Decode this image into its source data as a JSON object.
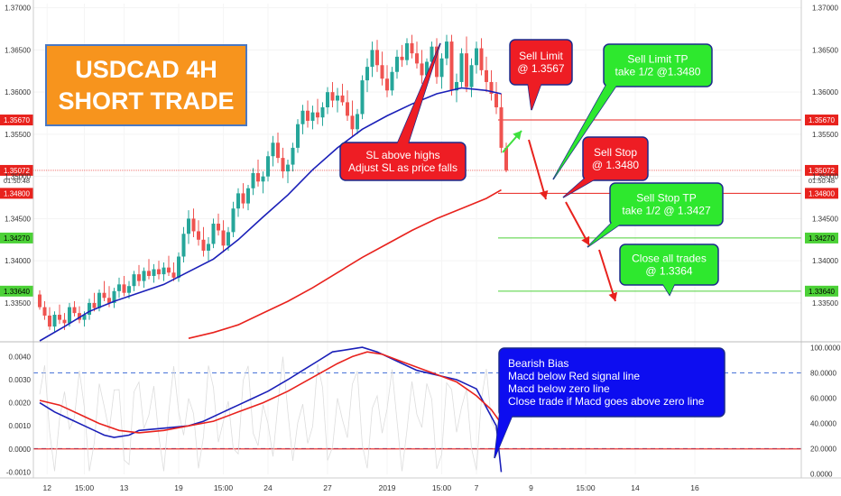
{
  "title_box": {
    "line1": "USDCAD 4H",
    "line2": "SHORT TRADE",
    "bg": "#f7941d",
    "border": "#4a78c2"
  },
  "colors": {
    "up": "#26a69a",
    "down": "#ef5350",
    "ma_fast": "#1a1fb8",
    "ma_slow": "#e8221d",
    "macd": "#1a1fb8",
    "signal": "#e8221d",
    "rsi": "#dddddd",
    "red_line": "#e8221d",
    "green_line": "#4cd137",
    "arrow_red": "#e8221d",
    "arrow_green": "#3ee03e"
  },
  "callouts": {
    "sl": {
      "lines": [
        "SL above highs",
        "Adjust SL as price falls"
      ],
      "bg": "#ee1d24"
    },
    "sell_limit": {
      "lines": [
        "Sell Limit",
        "@ 1.3567"
      ],
      "bg": "#ee1d24"
    },
    "sell_limit_tp": {
      "lines": [
        "Sell Limit TP",
        "take 1/2 @1.3480"
      ],
      "bg": "#2ee82e"
    },
    "sell_stop": {
      "lines": [
        "Sell Stop",
        "@ 1.3480"
      ],
      "bg": "#ee1d24"
    },
    "sell_stop_tp": {
      "lines": [
        "Sell Stop TP",
        "take 1/2 @ 1.3427"
      ],
      "bg": "#2ee82e"
    },
    "close_all": {
      "lines": [
        "Close all trades",
        "@ 1.3364"
      ],
      "bg": "#2ee82e"
    },
    "bias": {
      "lines": [
        "Bearish Bias",
        "Macd below Red signal line",
        "Macd below zero line",
        "Close trade if Macd goes above zero line"
      ],
      "bg": "#0d0df0"
    }
  },
  "chart_data": [
    {
      "type": "candlestick",
      "title": "",
      "ylim": [
        1.3305,
        1.3705
      ],
      "price_axis_labels": [
        "1.37000",
        "1.36500",
        "1.36000",
        "1.35500",
        "1.35000",
        "1.34500",
        "1.34000",
        "1.33500"
      ],
      "levels": [
        {
          "price": 1.3567,
          "label": "1.35670",
          "kind": "red"
        },
        {
          "price": 1.35072,
          "label": "1.35072",
          "kind": "red",
          "sublabel": "01:50:48"
        },
        {
          "price": 1.348,
          "label": "1.34800",
          "kind": "red"
        },
        {
          "price": 1.3427,
          "label": "1.34270",
          "kind": "green"
        },
        {
          "price": 1.3364,
          "label": "1.33640",
          "kind": "green"
        }
      ],
      "candles": [
        [
          1.336,
          1.3365,
          1.3342,
          1.3345
        ],
        [
          1.3345,
          1.3352,
          1.333,
          1.3335
        ],
        [
          1.3335,
          1.3345,
          1.3318,
          1.3322
        ],
        [
          1.3322,
          1.334,
          1.3316,
          1.3336
        ],
        [
          1.3336,
          1.3348,
          1.3325,
          1.333
        ],
        [
          1.333,
          1.3338,
          1.3318,
          1.3326
        ],
        [
          1.3326,
          1.335,
          1.3322,
          1.3345
        ],
        [
          1.3345,
          1.3352,
          1.3334,
          1.3338
        ],
        [
          1.3338,
          1.3346,
          1.3326,
          1.333
        ],
        [
          1.333,
          1.334,
          1.3322,
          1.3336
        ],
        [
          1.3336,
          1.3355,
          1.333,
          1.335
        ],
        [
          1.335,
          1.3362,
          1.334,
          1.3344
        ],
        [
          1.3344,
          1.3366,
          1.334,
          1.3362
        ],
        [
          1.3362,
          1.3376,
          1.3352,
          1.3356
        ],
        [
          1.3356,
          1.337,
          1.3345,
          1.335
        ],
        [
          1.335,
          1.3368,
          1.3344,
          1.3364
        ],
        [
          1.3364,
          1.338,
          1.3356,
          1.3372
        ],
        [
          1.3372,
          1.3382,
          1.3358,
          1.3362
        ],
        [
          1.3362,
          1.3376,
          1.3355,
          1.337
        ],
        [
          1.337,
          1.3388,
          1.3364,
          1.3384
        ],
        [
          1.3384,
          1.3395,
          1.337,
          1.3376
        ],
        [
          1.3376,
          1.3392,
          1.3368,
          1.3388
        ],
        [
          1.3388,
          1.3402,
          1.3378,
          1.3382
        ],
        [
          1.3382,
          1.3396,
          1.3374,
          1.339
        ],
        [
          1.339,
          1.34,
          1.3378,
          1.3384
        ],
        [
          1.3384,
          1.3398,
          1.3376,
          1.3392
        ],
        [
          1.3392,
          1.3406,
          1.3382,
          1.3386
        ],
        [
          1.3386,
          1.3398,
          1.3376,
          1.338
        ],
        [
          1.338,
          1.341,
          1.3375,
          1.3405
        ],
        [
          1.3405,
          1.344,
          1.3398,
          1.3432
        ],
        [
          1.3432,
          1.346,
          1.342,
          1.345
        ],
        [
          1.345,
          1.3462,
          1.3428,
          1.3435
        ],
        [
          1.3435,
          1.3448,
          1.3418,
          1.3425
        ],
        [
          1.3425,
          1.344,
          1.3405,
          1.3412
        ],
        [
          1.3412,
          1.3428,
          1.34,
          1.342
        ],
        [
          1.342,
          1.345,
          1.3415,
          1.3444
        ],
        [
          1.3444,
          1.3456,
          1.343,
          1.3436
        ],
        [
          1.3436,
          1.3448,
          1.341,
          1.3418
        ],
        [
          1.3418,
          1.344,
          1.3412,
          1.3434
        ],
        [
          1.3434,
          1.347,
          1.3428,
          1.3462
        ],
        [
          1.3462,
          1.3486,
          1.3452,
          1.348
        ],
        [
          1.348,
          1.3492,
          1.3462,
          1.3468
        ],
        [
          1.3468,
          1.349,
          1.346,
          1.3486
        ],
        [
          1.3486,
          1.351,
          1.3478,
          1.3504
        ],
        [
          1.3504,
          1.352,
          1.3488,
          1.3494
        ],
        [
          1.3494,
          1.3506,
          1.348,
          1.35
        ],
        [
          1.35,
          1.353,
          1.3494,
          1.3524
        ],
        [
          1.3524,
          1.3548,
          1.3512,
          1.354
        ],
        [
          1.354,
          1.3552,
          1.3516,
          1.3522
        ],
        [
          1.3522,
          1.3534,
          1.3498,
          1.3506
        ],
        [
          1.3506,
          1.352,
          1.3492,
          1.3514
        ],
        [
          1.3514,
          1.354,
          1.3506,
          1.3534
        ],
        [
          1.3534,
          1.3568,
          1.3528,
          1.3562
        ],
        [
          1.3562,
          1.3585,
          1.355,
          1.3578
        ],
        [
          1.3578,
          1.359,
          1.3558,
          1.3566
        ],
        [
          1.3566,
          1.3584,
          1.3556,
          1.3576
        ],
        [
          1.3576,
          1.3592,
          1.3562,
          1.357
        ],
        [
          1.357,
          1.3588,
          1.356,
          1.3582
        ],
        [
          1.3582,
          1.3606,
          1.3574,
          1.36
        ],
        [
          1.36,
          1.3612,
          1.3582,
          1.359
        ],
        [
          1.359,
          1.3605,
          1.3576,
          1.3596
        ],
        [
          1.3596,
          1.361,
          1.3584,
          1.3588
        ],
        [
          1.3588,
          1.3602,
          1.3566,
          1.3572
        ],
        [
          1.3572,
          1.359,
          1.3548,
          1.3556
        ],
        [
          1.3556,
          1.358,
          1.355,
          1.3574
        ],
        [
          1.3574,
          1.362,
          1.3568,
          1.3614
        ],
        [
          1.3614,
          1.364,
          1.36,
          1.363
        ],
        [
          1.363,
          1.366,
          1.3618,
          1.365
        ],
        [
          1.365,
          1.3662,
          1.3624,
          1.3632
        ],
        [
          1.3632,
          1.3648,
          1.3608,
          1.3616
        ],
        [
          1.3616,
          1.3632,
          1.3594,
          1.3602
        ],
        [
          1.3602,
          1.363,
          1.3596,
          1.3624
        ],
        [
          1.3624,
          1.365,
          1.3616,
          1.3642
        ],
        [
          1.3642,
          1.3656,
          1.363,
          1.3638
        ],
        [
          1.3638,
          1.3664,
          1.3632,
          1.3658
        ],
        [
          1.3658,
          1.3668,
          1.364,
          1.3646
        ],
        [
          1.3646,
          1.366,
          1.3628,
          1.3634
        ],
        [
          1.3634,
          1.365,
          1.361,
          1.362
        ],
        [
          1.362,
          1.364,
          1.3612,
          1.3636
        ],
        [
          1.3636,
          1.366,
          1.363,
          1.3654
        ],
        [
          1.3654,
          1.3664,
          1.361,
          1.3618
        ],
        [
          1.3618,
          1.3646,
          1.3604,
          1.364
        ],
        [
          1.364,
          1.3668,
          1.3632,
          1.366
        ],
        [
          1.366,
          1.3668,
          1.3596,
          1.3602
        ],
        [
          1.3602,
          1.3622,
          1.3588,
          1.3612
        ],
        [
          1.3612,
          1.3652,
          1.3606,
          1.3646
        ],
        [
          1.3646,
          1.3666,
          1.36,
          1.3606
        ],
        [
          1.3606,
          1.364,
          1.3594,
          1.3632
        ],
        [
          1.3632,
          1.366,
          1.3622,
          1.3652
        ],
        [
          1.3652,
          1.3664,
          1.362,
          1.3626
        ],
        [
          1.3626,
          1.3642,
          1.36,
          1.3612
        ],
        [
          1.3612,
          1.3626,
          1.359,
          1.3598
        ],
        [
          1.3598,
          1.3612,
          1.3574,
          1.3582
        ],
        [
          1.3582,
          1.3598,
          1.3528,
          1.3534
        ],
        [
          1.3534,
          1.354,
          1.3505,
          1.3507
        ]
      ],
      "moving_averages": [
        {
          "name": "",
          "color_key": "ma_fast",
          "points": [
            [
              0,
              1.3305
            ],
            [
              5,
              1.3322
            ],
            [
              10,
              1.334
            ],
            [
              15,
              1.3352
            ],
            [
              20,
              1.3362
            ],
            [
              25,
              1.3372
            ],
            [
              30,
              1.3387
            ],
            [
              35,
              1.3402
            ],
            [
              40,
              1.3425
            ],
            [
              45,
              1.3452
            ],
            [
              50,
              1.3478
            ],
            [
              55,
              1.3508
            ],
            [
              60,
              1.3534
            ],
            [
              65,
              1.3556
            ],
            [
              70,
              1.3572
            ],
            [
              75,
              1.3586
            ],
            [
              80,
              1.3598
            ],
            [
              85,
              1.3605
            ],
            [
              90,
              1.3602
            ],
            [
              93,
              1.3598
            ]
          ]
        },
        {
          "name": "",
          "color_key": "ma_slow",
          "points": [
            [
              30,
              1.3308
            ],
            [
              35,
              1.3315
            ],
            [
              40,
              1.3324
            ],
            [
              45,
              1.3338
            ],
            [
              50,
              1.3352
            ],
            [
              55,
              1.3368
            ],
            [
              60,
              1.3386
            ],
            [
              65,
              1.3404
            ],
            [
              70,
              1.342
            ],
            [
              75,
              1.3436
            ],
            [
              80,
              1.345
            ],
            [
              85,
              1.3462
            ],
            [
              90,
              1.3474
            ],
            [
              93,
              1.3484
            ]
          ]
        }
      ],
      "x_tick_labels": [
        {
          "i": 1.5,
          "label": "12"
        },
        {
          "i": 9,
          "label": "15:00"
        },
        {
          "i": 17,
          "label": "13"
        },
        {
          "i": 28,
          "label": "19"
        },
        {
          "i": 37,
          "label": "15:00"
        },
        {
          "i": 46,
          "label": "24"
        },
        {
          "i": 58,
          "label": "27"
        },
        {
          "i": 70,
          "label": "2019"
        },
        {
          "i": 81,
          "label": "15:00"
        },
        {
          "i": 88,
          "label": "7"
        },
        {
          "i": 99,
          "label": "9"
        },
        {
          "i": 110,
          "label": "15:00"
        },
        {
          "i": 120,
          "label": "14"
        },
        {
          "i": 132,
          "label": "16"
        }
      ]
    },
    {
      "type": "line",
      "title": "MACD",
      "ylim": [
        -0.0011,
        0.0046
      ],
      "left_axis_labels": [
        "0.0040",
        "0.0030",
        "0.0020",
        "0.0010",
        "0.0000",
        "-0.0010"
      ],
      "right_axis_labels": [
        "100.0000",
        "80.0000",
        "60.0000",
        "40.0000",
        "20.0000",
        "0.0000"
      ],
      "right_ylim": [
        -0.5,
        104
      ],
      "zero_line": 0.0,
      "dashed_levels_right": [
        80,
        20
      ],
      "series": [
        {
          "name": "",
          "color_key": "macd",
          "points": [
            [
              0,
              0.002
            ],
            [
              3,
              0.0016
            ],
            [
              6,
              0.0013
            ],
            [
              9,
              0.001
            ],
            [
              11,
              0.0008
            ],
            [
              13,
              0.0006
            ],
            [
              15,
              0.0005
            ],
            [
              18,
              0.0006
            ],
            [
              20,
              0.0008
            ],
            [
              25,
              0.0009
            ],
            [
              30,
              0.001
            ],
            [
              33,
              0.0012
            ],
            [
              37,
              0.0016
            ],
            [
              40,
              0.0019
            ],
            [
              43,
              0.0022
            ],
            [
              46,
              0.0025
            ],
            [
              50,
              0.003
            ],
            [
              53,
              0.0034
            ],
            [
              56,
              0.0038
            ],
            [
              59,
              0.0042
            ],
            [
              62,
              0.0043
            ],
            [
              65,
              0.0044
            ],
            [
              68,
              0.0042
            ],
            [
              72,
              0.0038
            ],
            [
              76,
              0.0034
            ],
            [
              80,
              0.0032
            ],
            [
              84,
              0.003
            ],
            [
              88,
              0.0026
            ],
            [
              90,
              0.0018
            ],
            [
              92,
              0.001
            ],
            [
              93,
              -0.001
            ]
          ]
        },
        {
          "name": "",
          "color_key": "signal",
          "points": [
            [
              0,
              0.0021
            ],
            [
              4,
              0.0019
            ],
            [
              8,
              0.0015
            ],
            [
              12,
              0.0011
            ],
            [
              16,
              0.0008
            ],
            [
              20,
              0.0007
            ],
            [
              25,
              0.0008
            ],
            [
              30,
              0.001
            ],
            [
              35,
              0.0012
            ],
            [
              40,
              0.0016
            ],
            [
              45,
              0.002
            ],
            [
              50,
              0.0025
            ],
            [
              55,
              0.0031
            ],
            [
              60,
              0.0037
            ],
            [
              63,
              0.004
            ],
            [
              66,
              0.0042
            ],
            [
              69,
              0.0041
            ],
            [
              74,
              0.0037
            ],
            [
              79,
              0.0033
            ],
            [
              84,
              0.0029
            ],
            [
              88,
              0.0023
            ],
            [
              91,
              0.0017
            ],
            [
              93,
              0.0011
            ]
          ]
        }
      ]
    }
  ]
}
